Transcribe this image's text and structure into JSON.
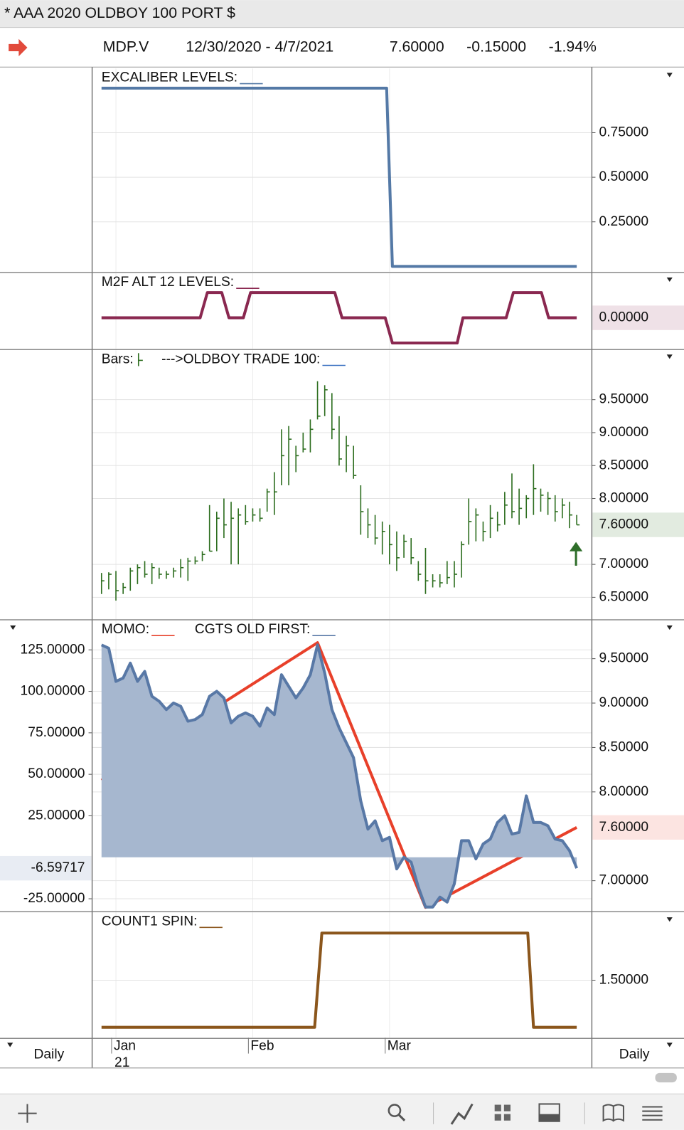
{
  "window_title": "* AAA 2020 OLDBOY 100 PORT $",
  "header": {
    "symbol": "MDP.V",
    "date_range": "12/30/2020 - 4/7/2021",
    "last": "7.60000",
    "change": "-0.15000",
    "change_pct": "-1.94%"
  },
  "x_axis": {
    "xlim": [
      -1.3,
      68.1
    ],
    "xticks": [
      {
        "value": 2,
        "label": "Jan"
      },
      {
        "value": 21,
        "label": "Feb"
      },
      {
        "value": 40,
        "label": "Mar"
      }
    ],
    "year_label": "21"
  },
  "interval_left": "Daily",
  "interval_right": "Daily",
  "chart_data": [
    {
      "type": "line",
      "grid": true,
      "ylim": [
        -0.03,
        1.11
      ],
      "yticks": [
        {
          "value": 0.75,
          "label": "0.75000"
        },
        {
          "value": 0.5,
          "label": "0.50000"
        },
        {
          "value": 0.25,
          "label": "0.25000"
        }
      ],
      "series": [
        {
          "name": "EXCALIBER LEVELS:",
          "color": "#5479a6",
          "x": [
            0,
            39.6,
            40.4,
            66
          ],
          "values": [
            1,
            1,
            0,
            0
          ]
        }
      ]
    },
    {
      "type": "line",
      "grid": true,
      "ylim": [
        -1.23,
        1.77
      ],
      "yticks": [],
      "series": [
        {
          "name": "M2F ALT 12 LEVELS:",
          "color": "#8a2850",
          "last_label": "0.00000",
          "x": [
            0,
            13.7,
            14.7,
            16.7,
            17.7,
            19.7,
            20.7,
            32.4,
            33.4,
            39.4,
            40.4,
            49.4,
            50.2,
            56.2,
            57.2,
            61.1,
            62.1,
            66
          ],
          "values": [
            0,
            0,
            1,
            1,
            0,
            0,
            1,
            1,
            0,
            0,
            -1,
            -1,
            0,
            0,
            1,
            1,
            0,
            0
          ]
        }
      ]
    },
    {
      "type": "ohlc",
      "grid": true,
      "ylim": [
        6.17,
        10.25
      ],
      "yticks": [
        {
          "value": 9.5,
          "label": "9.50000"
        },
        {
          "value": 9,
          "label": "9.00000"
        },
        {
          "value": 8.5,
          "label": "8.50000"
        },
        {
          "value": 8,
          "label": "8.00000"
        },
        {
          "value": 7,
          "label": "7.00000"
        },
        {
          "value": 6.5,
          "label": "6.50000"
        }
      ],
      "series": [
        {
          "name": "Bars:",
          "color": "#2d6e1f",
          "last_label": "7.60000",
          "high": [
            6.87,
            6.88,
            6.9,
            6.72,
            6.95,
            7.0,
            7.05,
            7.02,
            6.95,
            6.9,
            6.95,
            7.08,
            7.1,
            7.12,
            7.2,
            7.9,
            7.8,
            8.0,
            7.95,
            7.85,
            7.9,
            7.85,
            7.85,
            8.15,
            8.4,
            9.05,
            9.1,
            8.8,
            9.0,
            9.2,
            9.78,
            9.72,
            9.6,
            9.25,
            8.95,
            8.8,
            8.2,
            7.85,
            7.75,
            7.65,
            7.6,
            7.5,
            7.45,
            7.4,
            7.05,
            7.25,
            6.85,
            6.85,
            7.05,
            7.05,
            7.35,
            8.0,
            7.85,
            7.65,
            7.9,
            7.8,
            8.1,
            8.38,
            8.15,
            8.05,
            8.52,
            8.15,
            8.1,
            8.05,
            8.0,
            7.95,
            7.75
          ],
          "low": [
            6.55,
            6.62,
            6.45,
            6.55,
            6.6,
            6.7,
            6.8,
            6.7,
            6.78,
            6.78,
            6.8,
            6.8,
            6.75,
            7.0,
            7.05,
            7.2,
            7.2,
            7.4,
            7.0,
            7.0,
            7.6,
            7.65,
            7.65,
            7.8,
            7.75,
            8.2,
            8.2,
            8.4,
            8.7,
            8.7,
            9.2,
            9.25,
            8.9,
            8.5,
            8.4,
            8.3,
            7.45,
            7.4,
            7.3,
            7.15,
            7.0,
            6.9,
            7.1,
            7.0,
            6.75,
            6.55,
            6.65,
            6.65,
            6.7,
            6.65,
            6.8,
            7.3,
            7.35,
            7.35,
            7.4,
            7.5,
            7.6,
            7.7,
            7.6,
            7.7,
            7.75,
            7.8,
            7.75,
            7.65,
            7.7,
            7.55,
            7.6
          ],
          "close": [
            6.75,
            6.85,
            6.6,
            6.65,
            6.9,
            6.95,
            6.85,
            6.95,
            6.85,
            6.85,
            6.9,
            6.95,
            7.05,
            7.05,
            7.15,
            7.2,
            7.7,
            7.6,
            7.7,
            7.75,
            7.65,
            7.75,
            7.7,
            8.1,
            8.1,
            8.65,
            8.9,
            8.65,
            8.75,
            9.05,
            9.25,
            9.65,
            9.05,
            8.6,
            8.8,
            8.35,
            7.8,
            7.6,
            7.4,
            7.5,
            7.3,
            7.1,
            7.35,
            7.1,
            6.85,
            6.75,
            6.75,
            6.72,
            6.8,
            6.85,
            7.3,
            7.65,
            7.75,
            7.5,
            7.7,
            7.6,
            7.9,
            7.8,
            7.85,
            8.0,
            8.15,
            8.05,
            8.0,
            7.8,
            7.9,
            7.75,
            7.6
          ]
        },
        {
          "name": "--->OLDBOY TRADE 100:",
          "color": "#3d72c2"
        }
      ]
    },
    {
      "type": "combo",
      "grid": true,
      "ylim": [
        -32.3,
        142.7
      ],
      "y2lim": [
        6.66,
        9.93
      ],
      "yticks": [
        {
          "value": 125,
          "label": "125.00000"
        },
        {
          "value": 100,
          "label": "100.00000"
        },
        {
          "value": 75,
          "label": "75.00000"
        },
        {
          "value": 50,
          "label": "50.00000"
        },
        {
          "value": 25,
          "label": "25.00000"
        },
        {
          "value": -25,
          "label": "-25.00000"
        }
      ],
      "y2ticks": [
        {
          "value": 9.5,
          "label": "9.50000"
        },
        {
          "value": 9,
          "label": "9.00000"
        },
        {
          "value": 8.5,
          "label": "8.50000"
        },
        {
          "value": 8,
          "label": "8.00000"
        },
        {
          "value": 7,
          "label": "7.00000"
        }
      ],
      "series": [
        {
          "name": "MOMO:",
          "color": "#e8402a",
          "axis": "y2",
          "last_label": "7.60000",
          "x": [
            0,
            30,
            45,
            66
          ],
          "values": [
            8.13,
            9.68,
            6.7,
            7.6
          ]
        },
        {
          "name": "CGTS OLD FIRST:",
          "color": "#5878a6",
          "kind": "area",
          "last_label": "-6.59717",
          "values": [
            128,
            126,
            106,
            108,
            117,
            106,
            112,
            97,
            94,
            89,
            93,
            91,
            82,
            83,
            86,
            97,
            100,
            96,
            81,
            85,
            87,
            85,
            79,
            90,
            86,
            110,
            103,
            96,
            102,
            110,
            128,
            111,
            89,
            78,
            69,
            60,
            34,
            17,
            22,
            10,
            12,
            -7,
            0,
            -3,
            -18,
            -30,
            -30,
            -24,
            -27,
            -16,
            10,
            10,
            -1,
            8,
            11,
            21,
            25,
            14,
            15,
            37,
            21,
            21,
            19,
            11,
            10,
            4,
            -6.59717
          ]
        }
      ]
    },
    {
      "type": "line",
      "grid": true,
      "ylim": [
        0.89,
        2.22
      ],
      "yticks": [
        {
          "value": 1.5,
          "label": "1.50000"
        }
      ],
      "series": [
        {
          "name": "COUNT1 SPIN:",
          "color": "#8b561c",
          "x": [
            0,
            29.6,
            30.6,
            59.2,
            60,
            66
          ],
          "values": [
            1,
            1,
            2,
            2,
            1,
            1
          ]
        }
      ]
    }
  ]
}
